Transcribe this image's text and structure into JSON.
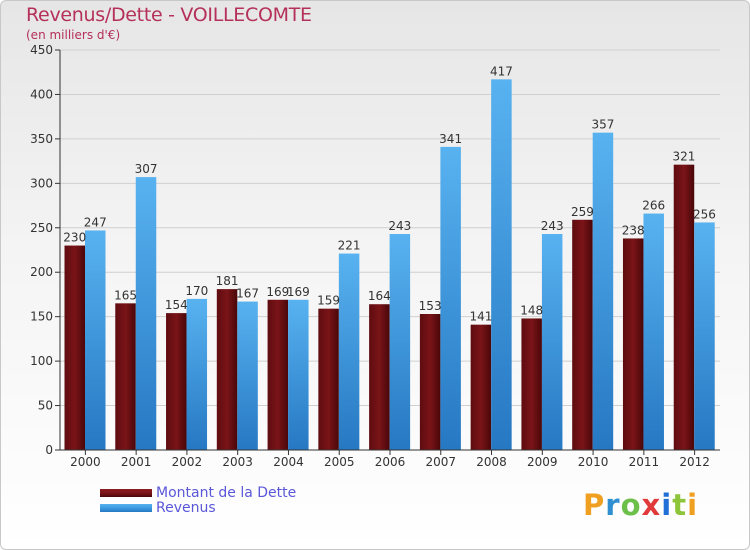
{
  "title": "Revenus/Dette - VOILLECOMTE",
  "subtitle": "(en milliers d'€)",
  "logo": {
    "letters": [
      "P",
      "r",
      "o",
      "x",
      "i",
      "t",
      "i"
    ],
    "colors": [
      "#f0a020",
      "#2f8fd0",
      "#6cc04a",
      "#e03a3a",
      "#1f6fd6",
      "#8cc43a",
      "#f0a020"
    ]
  },
  "colors": {
    "dette": "#7a1418",
    "revenus": "#3b9be0",
    "grid": "#d0d0d0",
    "axis": "#333333"
  },
  "chart_data": {
    "type": "bar",
    "title": "Revenus/Dette - VOILLECOMTE",
    "ylabel": "(en milliers d'€)",
    "categories": [
      "2000",
      "2001",
      "2002",
      "2003",
      "2004",
      "2005",
      "2006",
      "2007",
      "2008",
      "2009",
      "2010",
      "2011",
      "2012"
    ],
    "series": [
      {
        "name": "Montant de la Dette",
        "values": [
          230,
          165,
          154,
          181,
          169,
          159,
          164,
          153,
          141,
          148,
          259,
          238,
          321
        ]
      },
      {
        "name": "Revenus",
        "values": [
          247,
          307,
          170,
          167,
          169,
          221,
          243,
          341,
          417,
          243,
          357,
          266,
          256
        ]
      }
    ],
    "ylim": [
      0,
      450
    ],
    "yticks": [
      0,
      50,
      100,
      150,
      200,
      250,
      300,
      350,
      400,
      450
    ],
    "grid": true,
    "legend": "bottom-left"
  }
}
